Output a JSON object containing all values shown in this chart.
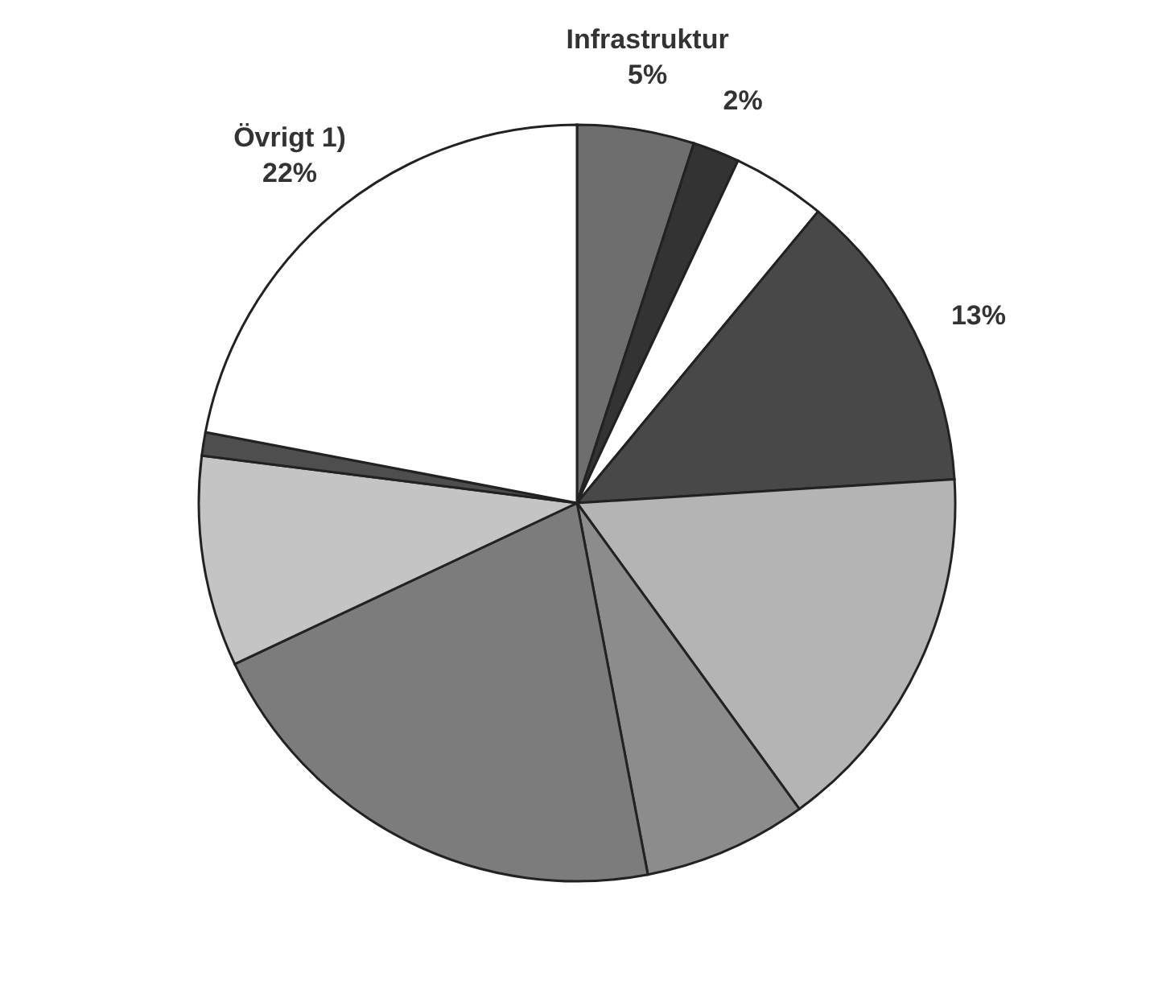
{
  "chart_data": {
    "type": "pie",
    "categories": [
      "Infrastruktur",
      null,
      null,
      null,
      null,
      null,
      null,
      null,
      null,
      "Övrigt 1)"
    ],
    "values": [
      5,
      2,
      4,
      13,
      16,
      7,
      21,
      9,
      1,
      22
    ],
    "value_labels": [
      "5%",
      "2%",
      null,
      "13%",
      null,
      null,
      null,
      null,
      null,
      "22%"
    ],
    "colors": [
      "#6e6e6e",
      "#333333",
      "#ffffff",
      "#484848",
      "#b4b4b4",
      "#8c8c8c",
      "#7c7c7c",
      "#c4c4c4",
      "#4e4e4e",
      "#ffffff"
    ]
  }
}
